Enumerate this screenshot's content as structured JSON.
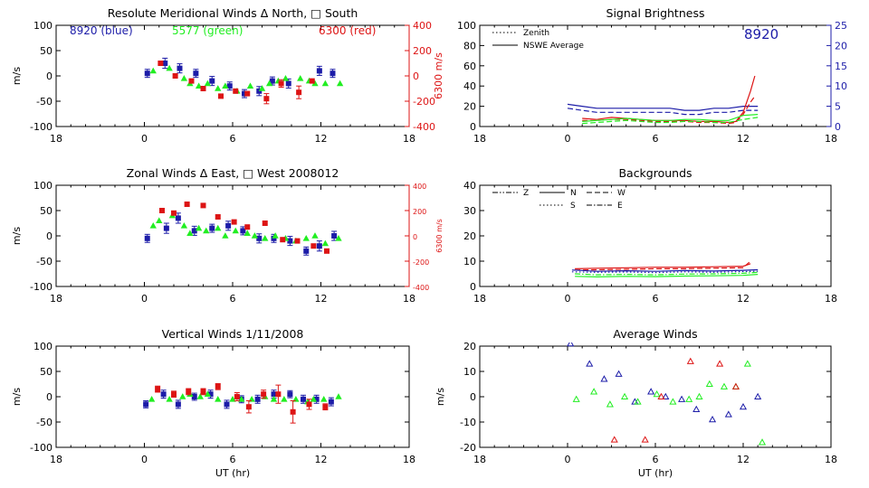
{
  "colors": {
    "blue": "#1c1ca8",
    "green": "#22ee22",
    "red": "#dd1414",
    "axis": "#000000"
  },
  "chart_data": [
    {
      "id": "meridional",
      "type": "scatter",
      "title": "Resolute Meridional Winds Δ North, □ South",
      "xlabel": "",
      "ylabel": "m/s",
      "ylabel_right": "6300 m/s",
      "x_ticks": [
        "18",
        "0",
        "6",
        "12",
        "18"
      ],
      "y_ticks": [
        "100",
        "50",
        "0",
        "-50",
        "-100"
      ],
      "y_ticks_right": [
        "400",
        "200",
        "0",
        "-200",
        "-400"
      ],
      "ylim": [
        -100,
        100
      ],
      "ylim_right": [
        -400,
        400
      ],
      "legend_text": [
        {
          "text": "8920 (blue)",
          "color": "blue"
        },
        {
          "text": "5577 (green)",
          "color": "green"
        },
        {
          "text": "6300 (red)",
          "color": "red"
        }
      ],
      "series": [
        {
          "name": "8920 (blue)",
          "color": "blue",
          "axis": "left",
          "marker": "square",
          "x": [
            0.2,
            1.4,
            2.4,
            3.5,
            4.6,
            5.8,
            6.8,
            7.8,
            8.7,
            9.8,
            11.9,
            12.8
          ],
          "y": [
            5,
            25,
            15,
            5,
            -10,
            -20,
            -35,
            -30,
            -10,
            -15,
            10,
            5
          ],
          "err": [
            8,
            10,
            9,
            8,
            9,
            8,
            8,
            9,
            8,
            9,
            9,
            8
          ]
        },
        {
          "name": "5577 (green)",
          "color": "green",
          "axis": "left",
          "marker": "triangle",
          "x": [
            0.6,
            1.7,
            2.7,
            3.1,
            3.7,
            4.3,
            5.0,
            5.5,
            6.3,
            7.2,
            8.0,
            8.5,
            9.1,
            9.6,
            10.6,
            11.2,
            11.6,
            12.3,
            13.3
          ],
          "y": [
            10,
            15,
            -5,
            -15,
            -20,
            -15,
            -25,
            -20,
            -30,
            -20,
            -25,
            -15,
            -10,
            -5,
            -5,
            -10,
            -15,
            -15,
            -15
          ],
          "err": []
        },
        {
          "name": "6300 (red)",
          "color": "red",
          "axis": "right",
          "marker": "square",
          "x": [
            1.1,
            2.1,
            3.2,
            4.0,
            5.2,
            6.2,
            7.0,
            8.3,
            9.3,
            10.5,
            11.4
          ],
          "y": [
            100,
            0,
            -40,
            -100,
            -160,
            -120,
            -140,
            -180,
            -60,
            -130,
            -40
          ],
          "err": [
            0,
            0,
            0,
            0,
            0,
            0,
            0,
            40,
            30,
            50,
            0
          ]
        }
      ]
    },
    {
      "id": "zonal",
      "type": "scatter",
      "title": "Zonal Winds Δ East, □ West 2008012",
      "xlabel": "",
      "ylabel": "m/s",
      "ylabel_right": "6300 m/s",
      "x_ticks": [
        "18",
        "0",
        "6",
        "12",
        "18"
      ],
      "y_ticks": [
        "100",
        "50",
        "0",
        "-50",
        "-100"
      ],
      "y_ticks_right": [
        "400",
        "200",
        "0",
        "-200",
        "-400"
      ],
      "ylim": [
        -100,
        100
      ],
      "ylim_right": [
        -400,
        400
      ],
      "series": [
        {
          "name": "8920",
          "color": "blue",
          "axis": "left",
          "marker": "square",
          "x": [
            0.2,
            1.5,
            2.3,
            3.4,
            4.6,
            5.7,
            6.7,
            7.8,
            8.8,
            9.9,
            11.0,
            11.9,
            12.9
          ],
          "y": [
            -5,
            15,
            35,
            10,
            15,
            20,
            10,
            -5,
            -5,
            -10,
            -30,
            -20,
            0
          ],
          "err": [
            8,
            10,
            10,
            9,
            8,
            9,
            8,
            9,
            8,
            9,
            8,
            10,
            9
          ]
        },
        {
          "name": "5577",
          "color": "green",
          "axis": "left",
          "marker": "triangle",
          "x": [
            0.6,
            1.0,
            1.9,
            2.7,
            3.1,
            3.7,
            4.2,
            5.0,
            5.5,
            6.2,
            7.0,
            7.5,
            8.2,
            8.9,
            9.6,
            10.3,
            11.0,
            11.6,
            12.3,
            13.2
          ],
          "y": [
            20,
            30,
            40,
            20,
            5,
            15,
            10,
            15,
            0,
            10,
            5,
            0,
            -5,
            0,
            -5,
            -10,
            -5,
            0,
            -15,
            -5
          ],
          "err": []
        },
        {
          "name": "6300",
          "color": "red",
          "axis": "right",
          "marker": "square",
          "x": [
            1.2,
            2.0,
            2.9,
            4.0,
            5.0,
            6.1,
            7.0,
            8.2,
            9.4,
            10.4,
            11.5,
            12.4
          ],
          "y": [
            200,
            180,
            250,
            240,
            150,
            110,
            70,
            100,
            -30,
            -40,
            -80,
            -120
          ],
          "err": [
            0,
            0,
            0,
            0,
            0,
            0,
            0,
            0,
            0,
            0,
            0,
            0
          ]
        }
      ]
    },
    {
      "id": "vertical",
      "type": "scatter",
      "title": "Vertical Winds 1/11/2008",
      "xlabel": "UT (hr)",
      "ylabel": "m/s",
      "x_ticks": [
        "18",
        "0",
        "6",
        "12",
        "18"
      ],
      "y_ticks": [
        "100",
        "50",
        "0",
        "-50",
        "-100"
      ],
      "ylim": [
        -100,
        100
      ],
      "series": [
        {
          "name": "8920",
          "color": "blue",
          "axis": "left",
          "marker": "square",
          "x": [
            0.1,
            1.3,
            2.3,
            3.4,
            4.5,
            5.6,
            6.6,
            7.7,
            8.8,
            9.9,
            10.8,
            11.7,
            12.7
          ],
          "y": [
            -15,
            5,
            -15,
            0,
            5,
            -15,
            -5,
            -5,
            5,
            5,
            -5,
            -5,
            -10
          ],
          "err": [
            7,
            8,
            8,
            7,
            8,
            8,
            7,
            8,
            8,
            7,
            8,
            8,
            8
          ]
        },
        {
          "name": "5577",
          "color": "green",
          "axis": "left",
          "marker": "triangle",
          "x": [
            0.5,
            1.7,
            2.6,
            3.1,
            3.8,
            4.3,
            5.0,
            6.0,
            6.6,
            7.3,
            8.2,
            8.8,
            9.5,
            10.3,
            11.1,
            11.5,
            12.2,
            13.2
          ],
          "y": [
            -5,
            -5,
            0,
            5,
            0,
            5,
            -5,
            -5,
            -5,
            -5,
            0,
            -5,
            -5,
            -5,
            -10,
            -5,
            -5,
            0
          ],
          "err": []
        },
        {
          "name": "6300",
          "color": "red",
          "axis": "left",
          "marker": "square",
          "x": [
            0.9,
            2.0,
            3.0,
            4.0,
            5.0,
            6.3,
            7.1,
            8.1,
            9.1,
            10.1,
            11.2,
            12.3
          ],
          "y": [
            15,
            5,
            10,
            10,
            20,
            0,
            -20,
            5,
            5,
            -30,
            -15,
            -20
          ],
          "err": [
            6,
            6,
            6,
            6,
            6,
            8,
            12,
            8,
            18,
            22,
            10,
            6
          ]
        }
      ]
    },
    {
      "id": "brightness",
      "type": "line",
      "title": "Signal Brightness",
      "xlabel": "",
      "ylabel": "",
      "x_ticks": [
        "18",
        "0",
        "6",
        "12",
        "18"
      ],
      "y_ticks": [
        "100",
        "80",
        "60",
        "40",
        "20",
        "0"
      ],
      "y_ticks_right": [
        "25",
        "20",
        "15",
        "10",
        "5",
        "0"
      ],
      "ylim": [
        0,
        100
      ],
      "ylim_right": [
        0,
        25
      ],
      "legend_entries": [
        {
          "label": "Zenith",
          "dash": "dotted"
        },
        {
          "label": "NSWE Average",
          "dash": "solid"
        }
      ],
      "annotation": "8920",
      "series": [
        {
          "name": "8920 NSWE Average",
          "color": "blue",
          "axis": "right",
          "dash": "solid",
          "x": [
            0,
            1,
            2,
            3,
            4,
            5,
            6,
            7,
            8,
            9,
            10,
            11,
            12,
            13
          ],
          "y": [
            5.5,
            5.0,
            4.5,
            4.5,
            4.5,
            4.5,
            4.5,
            4.5,
            4.0,
            4.0,
            4.5,
            4.5,
            5.0,
            5.0
          ]
        },
        {
          "name": "8920 Zenith",
          "color": "blue",
          "axis": "right",
          "dash": "dashed",
          "x": [
            0,
            1,
            2,
            3,
            4,
            5,
            6,
            7,
            8,
            9,
            10,
            11,
            12,
            13
          ],
          "y": [
            4.5,
            4.0,
            3.5,
            3.5,
            3.5,
            3.5,
            3.5,
            3.5,
            3.0,
            3.0,
            3.5,
            3.5,
            4.0,
            4.0
          ]
        },
        {
          "name": "6300 NSWE Average",
          "color": "red",
          "axis": "left",
          "dash": "solid",
          "x": [
            1,
            2,
            3,
            4,
            5,
            6,
            7,
            8,
            9,
            10,
            11,
            11.5,
            12,
            12.5,
            12.8
          ],
          "y": [
            8,
            7,
            9,
            8,
            7,
            6,
            6,
            6,
            5,
            5,
            4,
            5,
            14,
            35,
            50
          ]
        },
        {
          "name": "6300 Zenith",
          "color": "red",
          "axis": "left",
          "dash": "dashed",
          "x": [
            1,
            2,
            3,
            4,
            5,
            6,
            7,
            8,
            9,
            10,
            11,
            11.5,
            12,
            12.5,
            12.8
          ],
          "y": [
            6,
            6,
            7,
            7,
            6,
            5,
            5,
            5,
            4,
            4,
            3,
            4,
            12,
            24,
            30
          ]
        },
        {
          "name": "5577 NSWE Average",
          "color": "green",
          "axis": "left",
          "dash": "solid",
          "x": [
            1,
            2,
            3,
            4,
            5,
            6,
            7,
            8,
            9,
            10,
            11,
            12,
            13
          ],
          "y": [
            5,
            6,
            7,
            8,
            7,
            6,
            6,
            7,
            7,
            6,
            6,
            11,
            12
          ]
        },
        {
          "name": "5577 Zenith",
          "color": "green",
          "axis": "left",
          "dash": "dashed",
          "x": [
            1,
            2,
            3,
            4,
            5,
            6,
            7,
            8,
            9,
            10,
            11,
            12,
            13
          ],
          "y": [
            3,
            4,
            5,
            6,
            5,
            4,
            4,
            5,
            5,
            4,
            4,
            7,
            9
          ]
        }
      ]
    },
    {
      "id": "backgrounds",
      "type": "line",
      "title": "Backgrounds",
      "xlabel": "",
      "ylabel": "",
      "x_ticks": [
        "18",
        "0",
        "6",
        "12",
        "18"
      ],
      "y_ticks": [
        "40",
        "30",
        "20",
        "10",
        "0"
      ],
      "ylim": [
        0,
        40
      ],
      "legend_entries": [
        {
          "label": "Z",
          "dash": "dashdotdot"
        },
        {
          "label": "N",
          "dash": "solid"
        },
        {
          "label": "W",
          "dash": "dashed"
        },
        {
          "label": "S",
          "dash": "dotted"
        },
        {
          "label": "E",
          "dash": "dashdot"
        }
      ],
      "series": [
        {
          "name": "red N",
          "color": "red",
          "axis": "left",
          "dash": "solid",
          "x": [
            0.5,
            2,
            4,
            6,
            8,
            10,
            12,
            12.5
          ],
          "y": [
            7.0,
            7.2,
            7.4,
            7.6,
            7.6,
            7.8,
            8.0,
            9.0
          ]
        },
        {
          "name": "red W",
          "color": "red",
          "axis": "left",
          "dash": "dashed",
          "x": [
            0.5,
            2,
            4,
            6,
            8,
            10,
            12,
            12.5
          ],
          "y": [
            6.5,
            6.6,
            6.8,
            7.0,
            7.0,
            7.2,
            7.4,
            10.0
          ]
        },
        {
          "name": "blue N",
          "color": "blue",
          "axis": "left",
          "dash": "solid",
          "x": [
            0.3,
            2,
            4,
            6,
            8,
            10,
            12,
            13
          ],
          "y": [
            6.5,
            6.0,
            6.2,
            6.0,
            6.3,
            6.1,
            6.4,
            6.6
          ]
        },
        {
          "name": "blue S",
          "color": "blue",
          "axis": "left",
          "dash": "dotted",
          "x": [
            0.3,
            2,
            4,
            6,
            8,
            10,
            12,
            13
          ],
          "y": [
            5.8,
            5.6,
            5.7,
            5.5,
            5.8,
            5.6,
            5.9,
            6.0
          ]
        },
        {
          "name": "green N",
          "color": "green",
          "axis": "left",
          "dash": "solid",
          "x": [
            0.5,
            2,
            4,
            6,
            8,
            10,
            12,
            13
          ],
          "y": [
            4.0,
            3.8,
            4.0,
            3.9,
            4.1,
            4.2,
            4.4,
            4.8
          ]
        },
        {
          "name": "green E",
          "color": "green",
          "axis": "left",
          "dash": "dashdot",
          "x": [
            0.5,
            2,
            4,
            6,
            8,
            10,
            12,
            13
          ],
          "y": [
            5.0,
            4.6,
            4.8,
            4.6,
            4.9,
            5.0,
            5.2,
            5.6
          ]
        }
      ]
    },
    {
      "id": "average",
      "type": "scatter",
      "title": "Average Winds",
      "xlabel": "UT (hr)",
      "ylabel": "m/s",
      "x_ticks": [
        "18",
        "0",
        "6",
        "12",
        "18"
      ],
      "y_ticks": [
        "20",
        "10",
        "0",
        "-10",
        "-20"
      ],
      "ylim": [
        -20,
        20
      ],
      "series": [
        {
          "name": "8920",
          "color": "blue",
          "axis": "left",
          "marker": "triangle",
          "x": [
            0.2,
            1.5,
            2.5,
            3.5,
            4.6,
            5.7,
            6.7,
            7.8,
            8.8,
            9.9,
            11.0,
            12.0,
            13.0
          ],
          "y": [
            21,
            13,
            7,
            9,
            -2,
            2,
            0,
            -1,
            -5,
            -9,
            -7,
            -4,
            0
          ]
        },
        {
          "name": "5577",
          "color": "green",
          "axis": "left",
          "marker": "triangle",
          "x": [
            0.6,
            1.8,
            2.9,
            3.9,
            4.8,
            6.1,
            7.2,
            8.3,
            9.0,
            9.7,
            10.7,
            11.5,
            12.3,
            13.3
          ],
          "y": [
            -1,
            2,
            -3,
            0,
            -2,
            1,
            -2,
            -1,
            0,
            5,
            4,
            4,
            13,
            -18
          ]
        },
        {
          "name": "6300",
          "color": "red",
          "axis": "left",
          "marker": "triangle",
          "x": [
            3.2,
            5.3,
            6.4,
            8.4,
            10.4,
            11.5
          ],
          "y": [
            -17,
            -17,
            0,
            14,
            13,
            4
          ]
        }
      ]
    }
  ]
}
